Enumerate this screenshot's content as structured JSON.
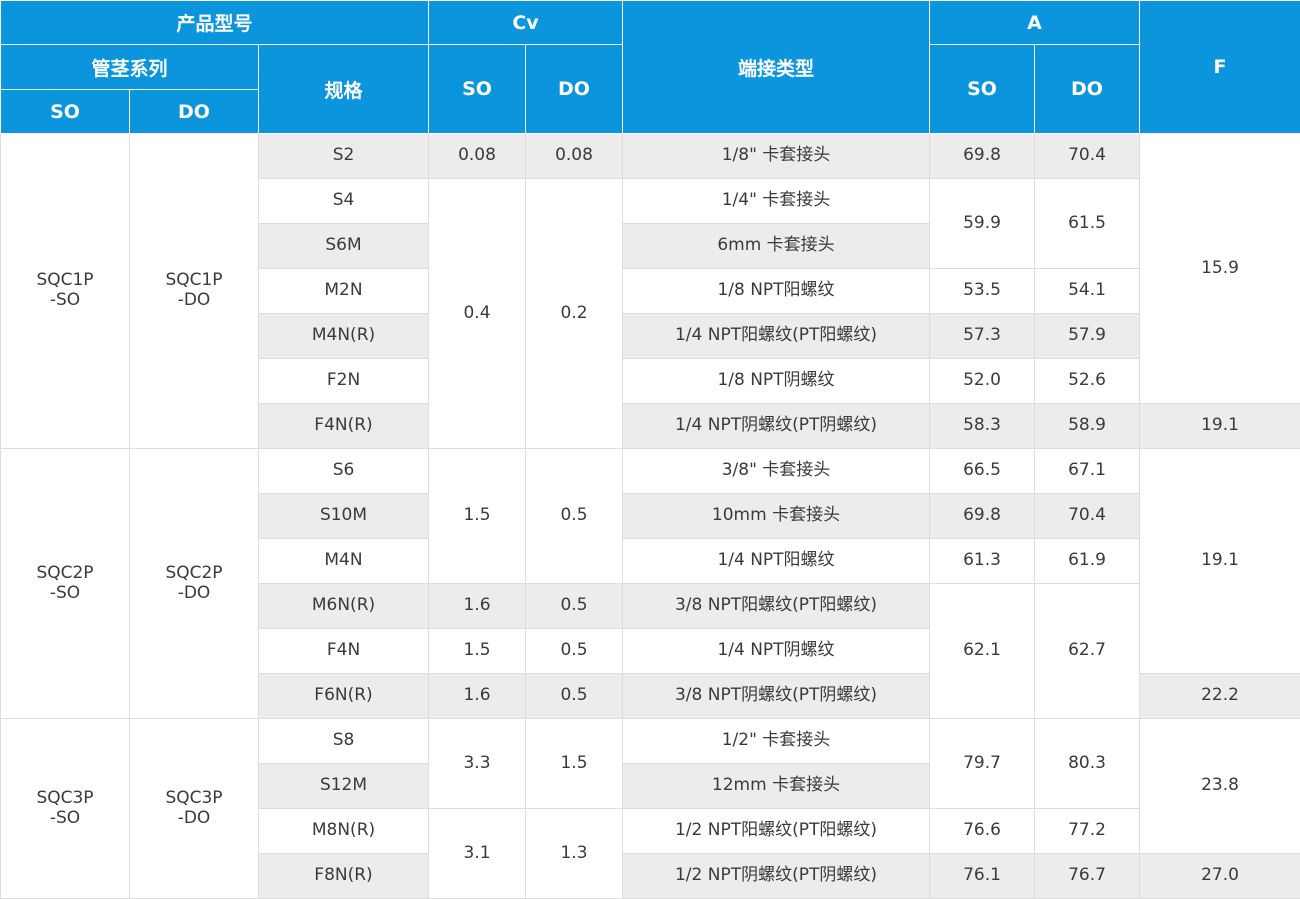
{
  "header": {
    "product_model": "产品型号",
    "tube_series": "管茎系列",
    "spec": "规格",
    "cv": "Cv",
    "end_type": "端接类型",
    "a": "A",
    "f": "F",
    "so": "SO",
    "do": "DO"
  },
  "groups": [
    {
      "so_series": [
        "SQC1P",
        "-SO"
      ],
      "do_series": [
        "SQC1P",
        "-DO"
      ],
      "rows": [
        {
          "spec": "S2",
          "cv_so": "0.08",
          "cv_do": "0.08",
          "end": "1/8\" 卡套接头",
          "a_so": "69.8",
          "a_do": "70.4",
          "f": "15.9"
        },
        {
          "spec": "S4",
          "cv_so": "0.4",
          "cv_do": "0.2",
          "end": "1/4\" 卡套接头",
          "a_so": "59.9",
          "a_do": "61.5"
        },
        {
          "spec": "S6M",
          "end": "6mm 卡套接头"
        },
        {
          "spec": "M2N",
          "end": "1/8 NPT阳螺纹",
          "a_so": "53.5",
          "a_do": "54.1"
        },
        {
          "spec": "M4N(R)",
          "end": "1/4 NPT阳螺纹(PT阳螺纹)",
          "a_so": "57.3",
          "a_do": "57.9"
        },
        {
          "spec": "F2N",
          "end": "1/8 NPT阴螺纹",
          "a_so": "52.0",
          "a_do": "52.6"
        },
        {
          "spec": "F4N(R)",
          "end": "1/4 NPT阴螺纹(PT阴螺纹)",
          "a_so": "58.3",
          "a_do": "58.9",
          "f": "19.1"
        }
      ]
    },
    {
      "so_series": [
        "SQC2P",
        "-SO"
      ],
      "do_series": [
        "SQC2P",
        "-DO"
      ],
      "rows": [
        {
          "spec": "S6",
          "cv_so": "1.5",
          "cv_do": "0.5",
          "end": "3/8\" 卡套接头",
          "a_so": "66.5",
          "a_do": "67.1",
          "f": "19.1"
        },
        {
          "spec": "S10M",
          "end": "10mm 卡套接头",
          "a_so": "69.8",
          "a_do": "70.4"
        },
        {
          "spec": "M4N",
          "end": "1/4 NPT阳螺纹",
          "a_so": "61.3",
          "a_do": "61.9"
        },
        {
          "spec": "M6N(R)",
          "cv_so": "1.6",
          "cv_do": "0.5",
          "end": "3/8 NPT阳螺纹(PT阳螺纹)",
          "a_so": "62.1",
          "a_do": "62.7"
        },
        {
          "spec": "F4N",
          "cv_so": "1.5",
          "cv_do": "0.5",
          "end": "1/4 NPT阴螺纹"
        },
        {
          "spec": "F6N(R)",
          "cv_so": "1.6",
          "cv_do": "0.5",
          "end": "3/8 NPT阴螺纹(PT阴螺纹)",
          "f": "22.2"
        }
      ]
    },
    {
      "so_series": [
        "SQC3P",
        "-SO"
      ],
      "do_series": [
        "SQC3P",
        "-DO"
      ],
      "rows": [
        {
          "spec": "S8",
          "cv_so": "3.3",
          "cv_do": "1.5",
          "end": "1/2\" 卡套接头",
          "a_so": "79.7",
          "a_do": "80.3",
          "f": "23.8"
        },
        {
          "spec": "S12M",
          "end": "12mm 卡套接头"
        },
        {
          "spec": "M8N(R)",
          "cv_so": "3.1",
          "cv_do": "1.3",
          "end": "1/2 NPT阳螺纹(PT阳螺纹)",
          "a_so": "76.6",
          "a_do": "77.2"
        },
        {
          "spec": "F8N(R)",
          "end": "1/2 NPT阴螺纹(PT阴螺纹)",
          "a_so": "76.1",
          "a_do": "76.7",
          "f": "27.0"
        }
      ]
    }
  ]
}
